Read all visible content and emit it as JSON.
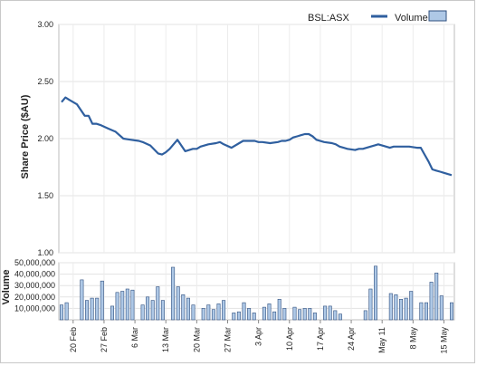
{
  "chart_data": {
    "type": "line",
    "legend": {
      "placement": "top-right",
      "entries": [
        "BSL:ASX",
        "Volume"
      ]
    },
    "price_panel": {
      "ylabel": "Share Price ($AU)",
      "ylim": [
        1.0,
        3.0
      ],
      "yticks": [
        "3.00",
        "2.50",
        "2.00",
        "1.50",
        "1.00"
      ],
      "grid": true,
      "series": [
        {
          "name": "BSL:ASX",
          "color": "#2f5f9f",
          "x": [
            0,
            1,
            2,
            4,
            6,
            7,
            8,
            9,
            10,
            12,
            14,
            16,
            18,
            20,
            21,
            23,
            25,
            26,
            27,
            28,
            30,
            32,
            34,
            35,
            36,
            37,
            38,
            40,
            41,
            42,
            44,
            46,
            47,
            48,
            49,
            50,
            51,
            52,
            54,
            56,
            57,
            58,
            59,
            60,
            61,
            62,
            63,
            64,
            65,
            66,
            68,
            70,
            71,
            72,
            74,
            76,
            77,
            78,
            79,
            80,
            81,
            82,
            83,
            84,
            85,
            86,
            87,
            88,
            90,
            92,
            93,
            94,
            95,
            96,
            97,
            98,
            99,
            100,
            101
          ],
          "values": [
            2.32,
            2.36,
            2.34,
            2.3,
            2.2,
            2.2,
            2.13,
            2.13,
            2.12,
            2.09,
            2.06,
            2.0,
            1.99,
            1.98,
            1.97,
            1.94,
            1.87,
            1.86,
            1.88,
            1.91,
            1.99,
            1.89,
            1.91,
            1.91,
            1.93,
            1.94,
            1.95,
            1.96,
            1.97,
            1.95,
            1.92,
            1.96,
            1.98,
            1.98,
            1.98,
            1.98,
            1.97,
            1.97,
            1.96,
            1.97,
            1.98,
            1.98,
            1.99,
            2.01,
            2.02,
            2.03,
            2.04,
            2.04,
            2.02,
            1.99,
            1.97,
            1.96,
            1.95,
            1.93,
            1.91,
            1.9,
            1.91,
            1.91,
            1.92,
            1.93,
            1.94,
            1.95,
            1.94,
            1.93,
            1.92,
            1.93,
            1.93,
            1.93,
            1.93,
            1.92,
            1.92,
            1.86,
            1.8,
            1.73,
            1.72,
            1.71,
            1.7,
            1.69,
            1.68
          ]
        }
      ]
    },
    "volume_panel": {
      "ylabel": "Volume",
      "ylim": [
        0,
        50000000
      ],
      "yticks": [
        "50,000,000",
        "40,000,000",
        "30,000,000",
        "20,000,000",
        "10,000,000"
      ],
      "grid": true,
      "series": [
        {
          "name": "Volume",
          "color": "#aec8e6",
          "values": [
            13000000,
            15000000,
            0,
            0,
            35000000,
            17000000,
            19000000,
            19000000,
            34000000,
            0,
            12000000,
            24000000,
            25000000,
            27000000,
            26000000,
            0,
            13000000,
            20000000,
            17000000,
            29000000,
            17000000,
            0,
            46000000,
            29000000,
            22000000,
            19000000,
            13000000,
            0,
            10000000,
            13000000,
            9000000,
            14000000,
            17000000,
            0,
            6000000,
            7000000,
            15000000,
            10000000,
            6000000,
            0,
            11000000,
            14000000,
            7000000,
            18000000,
            10000000,
            0,
            11000000,
            9000000,
            10000000,
            10000000,
            6000000,
            0,
            12000000,
            12000000,
            8000000,
            5000000,
            0,
            0,
            0,
            0,
            8000000,
            27000000,
            47000000,
            0,
            0,
            23000000,
            22000000,
            18000000,
            19000000,
            25000000,
            0,
            15000000,
            15000000,
            33000000,
            41000000,
            21000000,
            0,
            15000000
          ]
        }
      ]
    },
    "x_tick_labels": [
      "20 Feb",
      "27 Feb",
      "6 Mar",
      "13 Mar",
      "20 Mar",
      "27 Mar",
      "3 Apr",
      "10 Apr",
      "17 Apr",
      "24 Apr",
      "May 11",
      "8 May",
      "15 May"
    ]
  }
}
